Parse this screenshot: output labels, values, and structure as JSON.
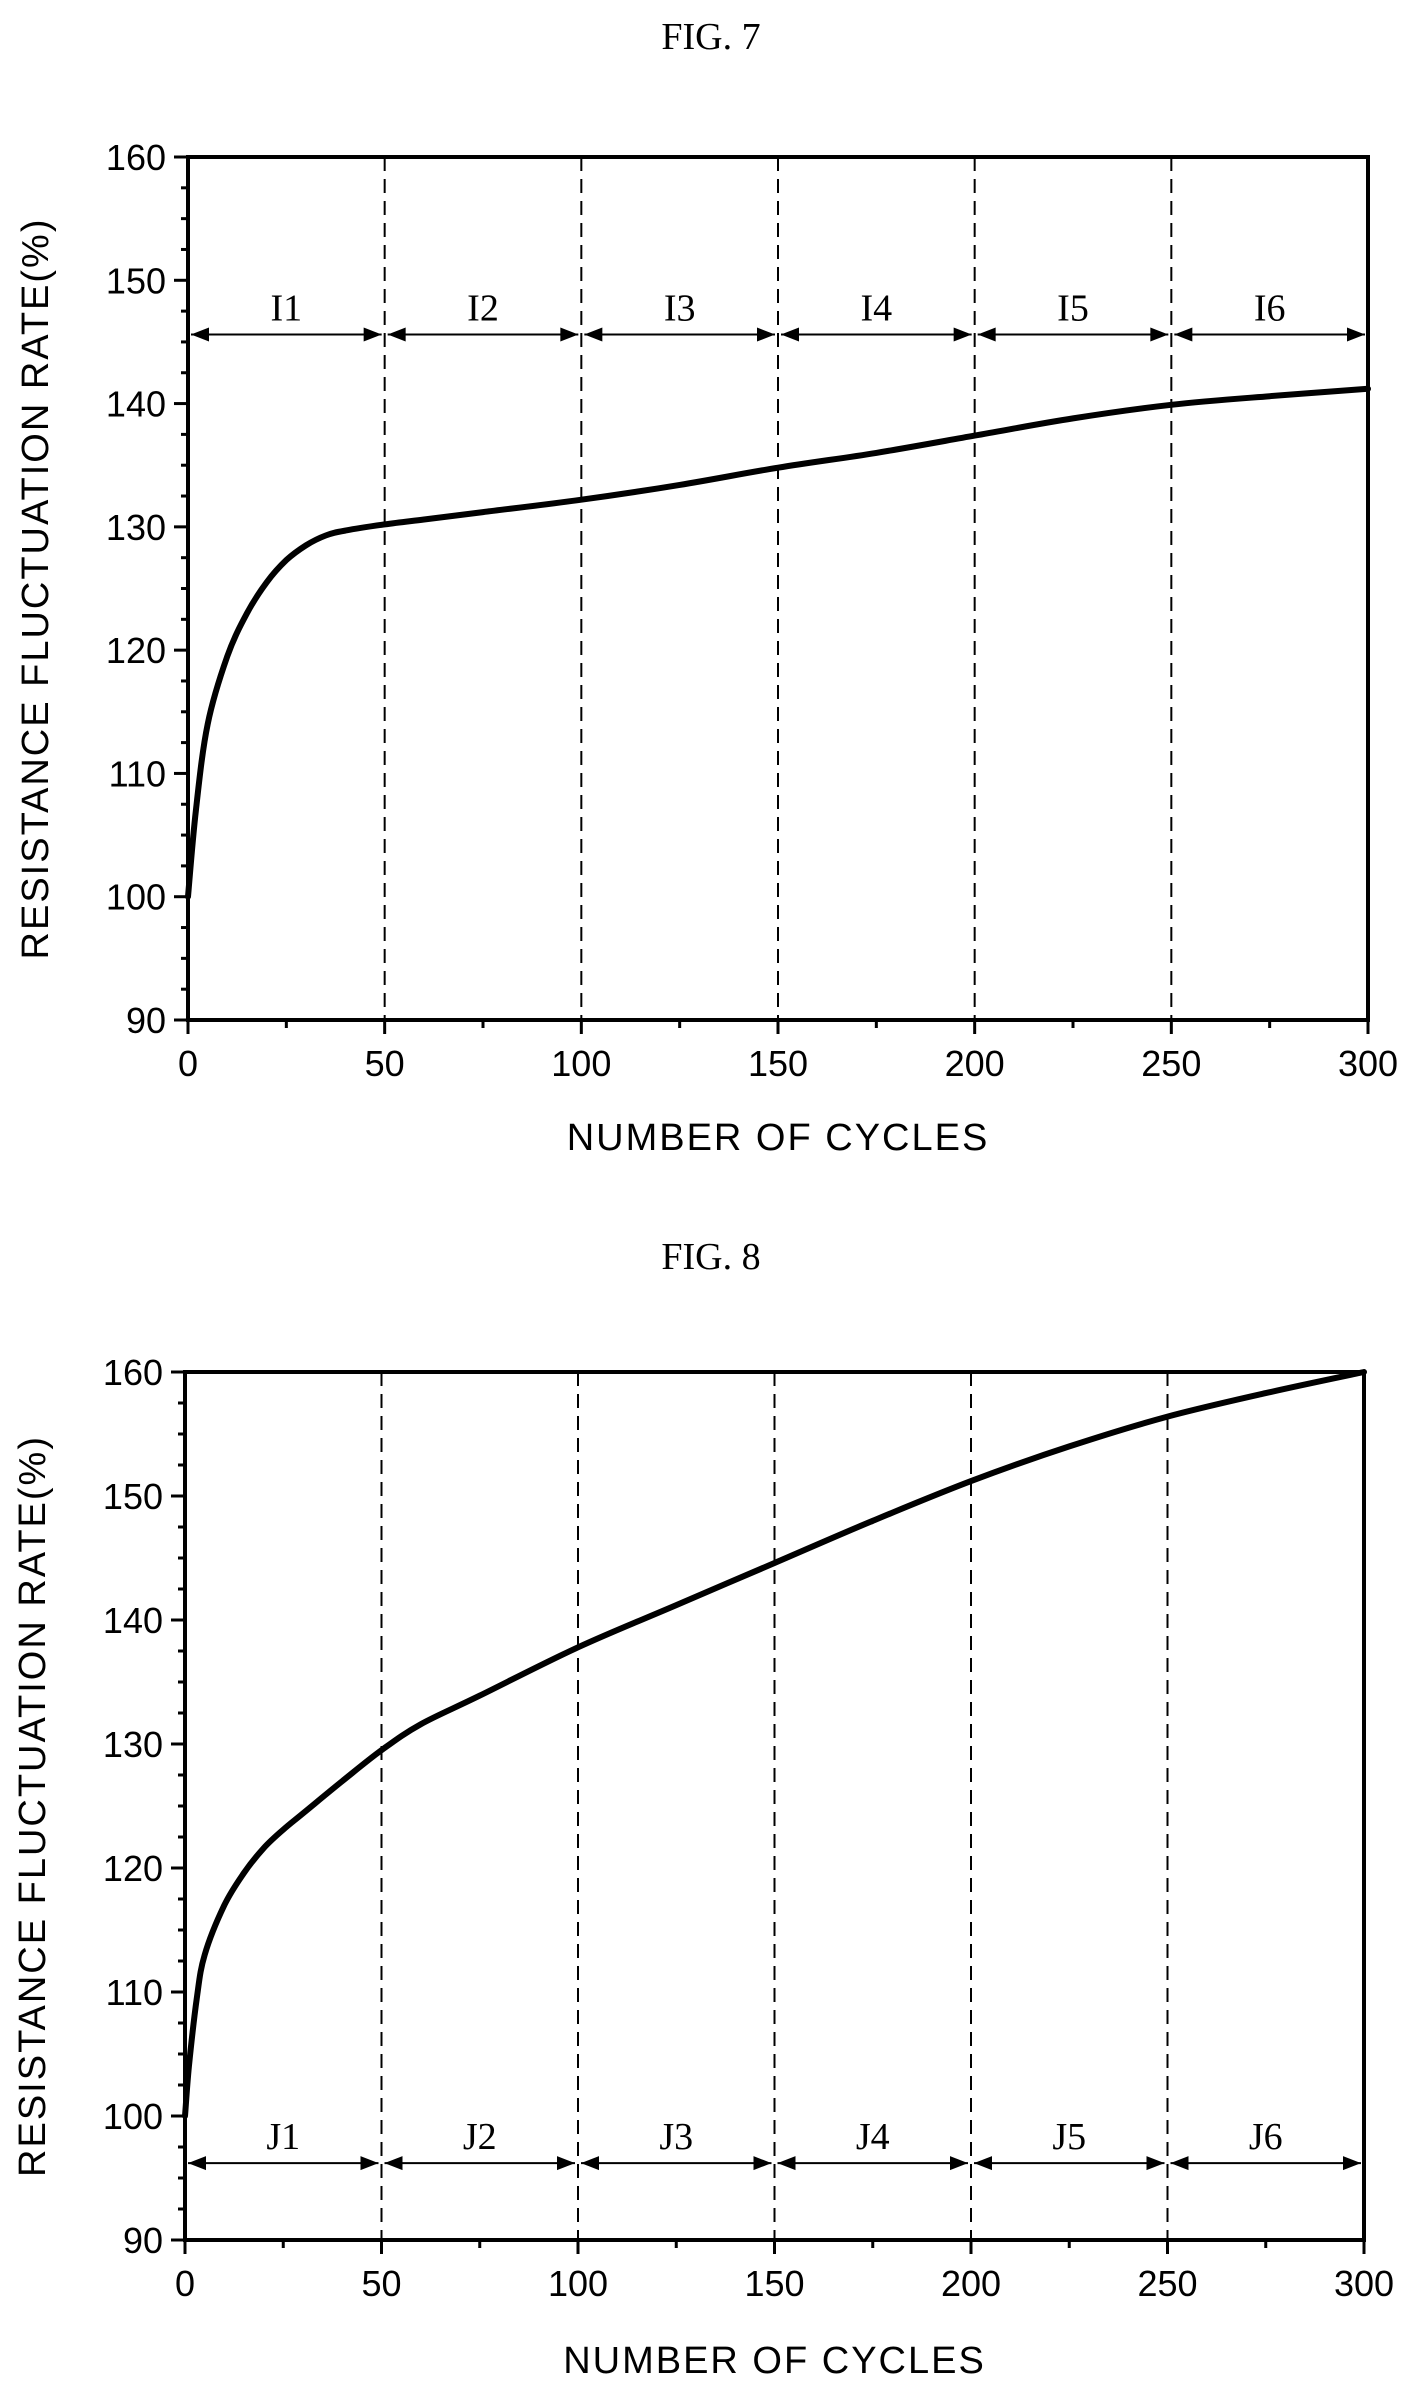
{
  "chart_data": [
    {
      "type": "line",
      "title": "FIG. 7",
      "xlabel": "NUMBER OF CYCLES",
      "ylabel": "RESISTANCE FLUCTUATION RATE(%)",
      "xlim": [
        0,
        300
      ],
      "ylim": [
        90,
        160
      ],
      "xticks": [
        0,
        50,
        100,
        150,
        200,
        250,
        300
      ],
      "yticks": [
        90,
        100,
        110,
        120,
        130,
        140,
        150,
        160
      ],
      "dividers": [
        50,
        100,
        150,
        200,
        250
      ],
      "intervals": [
        {
          "label": "I1",
          "start": 0,
          "end": 50
        },
        {
          "label": "I2",
          "start": 50,
          "end": 100
        },
        {
          "label": "I3",
          "start": 100,
          "end": 150
        },
        {
          "label": "I4",
          "start": 150,
          "end": 200
        },
        {
          "label": "I5",
          "start": 200,
          "end": 250
        },
        {
          "label": "I6",
          "start": 250,
          "end": 300
        }
      ],
      "interval_arrow_y": 145.6,
      "grid": false,
      "series": [
        {
          "x": [
            0,
            2,
            5,
            10,
            15,
            20,
            25,
            30,
            35,
            40,
            50,
            60,
            75,
            100,
            125,
            150,
            175,
            200,
            225,
            250,
            275,
            300
          ],
          "y": [
            100,
            107,
            114,
            119.5,
            123,
            125.5,
            127.3,
            128.5,
            129.3,
            129.7,
            130.2,
            130.6,
            131.2,
            132.2,
            133.4,
            134.8,
            136,
            137.4,
            138.8,
            139.9,
            140.6,
            141.2
          ]
        }
      ]
    },
    {
      "type": "line",
      "title": "FIG. 8",
      "xlabel": "NUMBER OF CYCLES",
      "ylabel": "RESISTANCE FLUCTUATION RATE(%)",
      "xlim": [
        0,
        300
      ],
      "ylim": [
        90,
        160
      ],
      "xticks": [
        0,
        50,
        100,
        150,
        200,
        250,
        300
      ],
      "yticks": [
        90,
        100,
        110,
        120,
        130,
        140,
        150,
        160
      ],
      "dividers": [
        50,
        100,
        150,
        200,
        250
      ],
      "intervals": [
        {
          "label": "J1",
          "start": 0,
          "end": 50
        },
        {
          "label": "J2",
          "start": 50,
          "end": 100
        },
        {
          "label": "J3",
          "start": 100,
          "end": 150
        },
        {
          "label": "J4",
          "start": 150,
          "end": 200
        },
        {
          "label": "J5",
          "start": 200,
          "end": 250
        },
        {
          "label": "J6",
          "start": 250,
          "end": 300
        }
      ],
      "interval_arrow_y": 96.2,
      "grid": false,
      "series": [
        {
          "x": [
            0,
            1,
            3,
            5,
            10,
            15,
            20,
            25,
            30,
            40,
            50,
            60,
            75,
            100,
            125,
            150,
            175,
            200,
            225,
            250,
            275,
            300
          ],
          "y": [
            100,
            104,
            109.5,
            113,
            117,
            119.6,
            121.6,
            123.1,
            124.4,
            127,
            129.5,
            131.6,
            133.9,
            137.8,
            141.2,
            144.6,
            148,
            151.2,
            154,
            156.4,
            158.3,
            160
          ]
        }
      ]
    }
  ]
}
